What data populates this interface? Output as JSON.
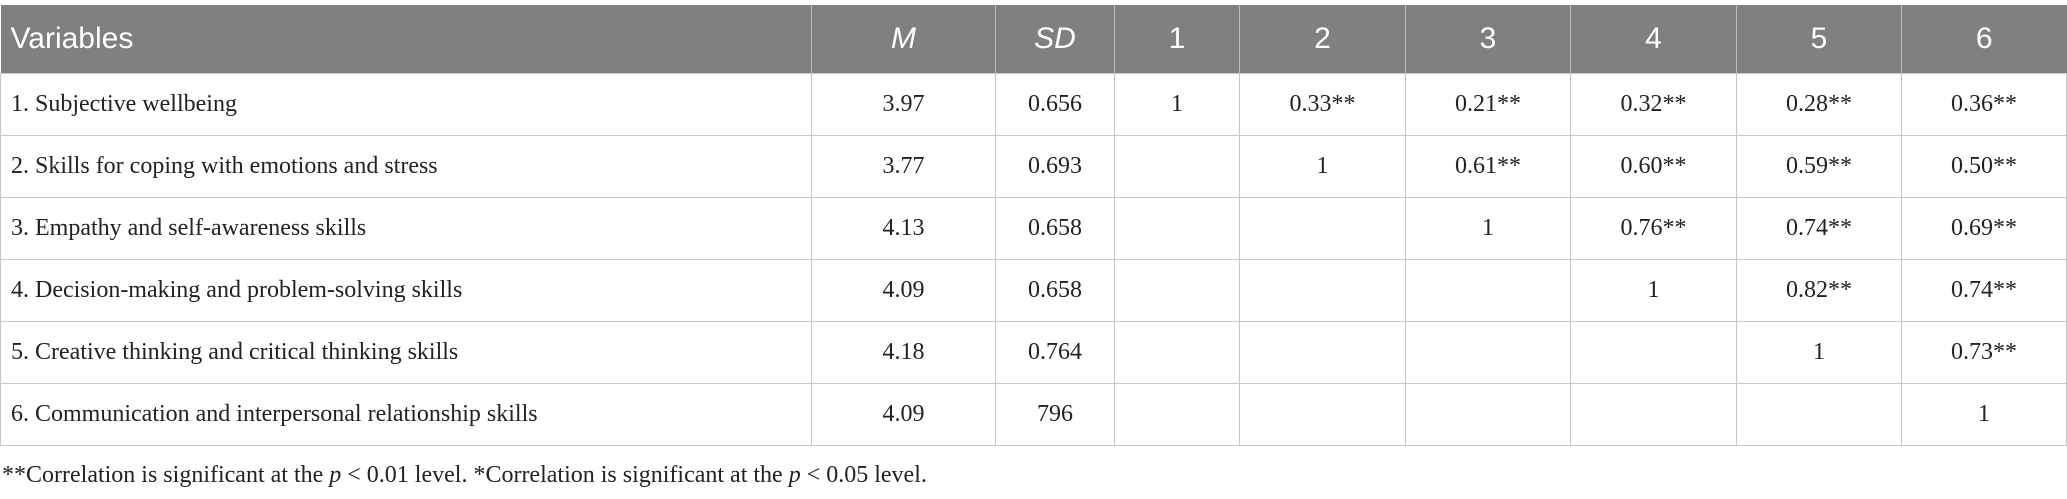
{
  "table": {
    "header": [
      "Variables",
      "M",
      "SD",
      "1",
      "2",
      "3",
      "4",
      "5",
      "6"
    ],
    "rows": [
      [
        "1. Subjective wellbeing",
        "3.97",
        "0.656",
        "1",
        "0.33**",
        "0.21**",
        "0.32**",
        "0.28**",
        "0.36**"
      ],
      [
        "2. Skills for coping with emotions and stress",
        "3.77",
        "0.693",
        null,
        "1",
        "0.61**",
        "0.60**",
        "0.59**",
        "0.50**"
      ],
      [
        "3. Empathy and self-awareness skills",
        "4.13",
        "0.658",
        null,
        null,
        "1",
        "0.76**",
        "0.74**",
        "0.69**"
      ],
      [
        "4. Decision-making and problem-solving skills",
        "4.09",
        "0.658",
        null,
        null,
        null,
        "1",
        "0.82**",
        "0.74**"
      ],
      [
        "5. Creative thinking and critical thinking skills",
        "4.18",
        "0.764",
        null,
        null,
        null,
        null,
        "1",
        "0.73**"
      ],
      [
        "6. Communication and interpersonal relationship skills",
        "4.09",
        "796",
        null,
        null,
        null,
        null,
        null,
        "1"
      ]
    ]
  },
  "footnote": [
    "**Correlation is significant at the ",
    "p",
    " < 0.01 level. *Correlation is significant at the ",
    "p",
    " < 0.05 level."
  ]
}
